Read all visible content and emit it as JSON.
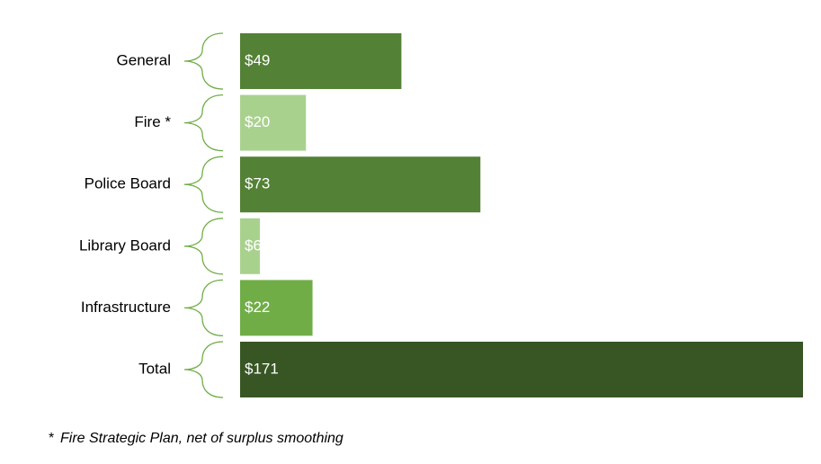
{
  "chart_data": {
    "type": "hbar",
    "categories": [
      "General",
      "Fire *",
      "Police Board",
      "Library Board",
      "Infrastructure",
      "Total"
    ],
    "values": [
      49,
      20,
      73,
      6,
      22,
      171
    ],
    "value_labels": [
      "$49",
      "$20",
      "$73",
      "$6",
      "$22",
      "$171"
    ],
    "colors": [
      "#538135",
      "#a9d18e",
      "#538135",
      "#a9d18e",
      "#70ad47",
      "#375623"
    ],
    "footnote_marker": "*",
    "footnote": "Fire Strategic Plan, net of surplus smoothing"
  }
}
